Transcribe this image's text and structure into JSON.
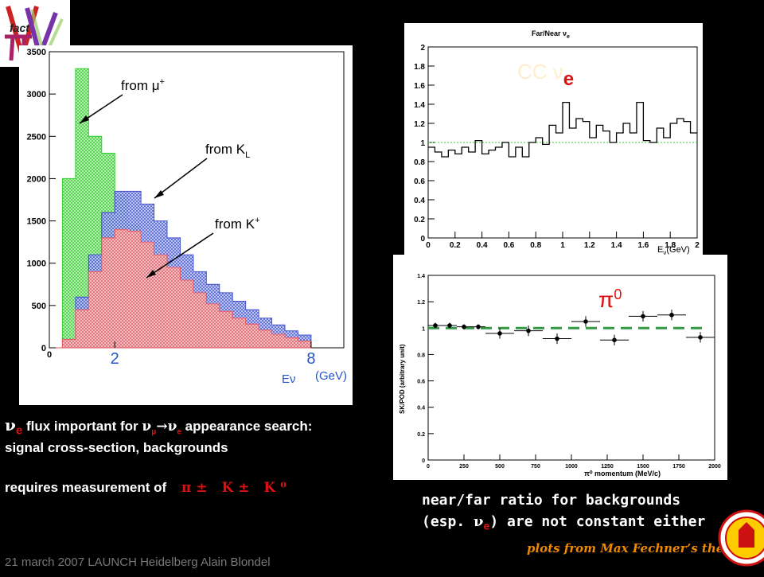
{
  "logo": {
    "text": "fact"
  },
  "left_chart": {
    "annotations": {
      "mu": "from μ",
      "mu_sup": "+",
      "kl": "from K",
      "kl_sub": "L",
      "kp": "from K",
      "kp_sup": "+"
    },
    "yticks": [
      "0",
      "500",
      "1000",
      "1500",
      "2000",
      "2500",
      "3000",
      "3500"
    ],
    "xticks": [
      "0",
      "2",
      "8"
    ],
    "xunit_a": "Eν",
    "xunit_b": "(GeV)",
    "colors": {
      "mu": "#33cc33",
      "kl": "#3344cc",
      "kp": "#ee5555"
    },
    "chart_data": {
      "type": "area",
      "series": [
        {
          "name": "from μ+",
          "values": [
            0,
            2000,
            3300,
            2500,
            2300,
            1800,
            1450,
            1200,
            1000,
            900,
            800,
            650,
            500,
            400,
            300,
            250,
            200,
            160,
            120,
            90
          ]
        },
        {
          "name": "from KL",
          "values": [
            0,
            100,
            600,
            1100,
            1600,
            1850,
            1850,
            1700,
            1500,
            1300,
            1100,
            900,
            750,
            650,
            550,
            450,
            350,
            270,
            200,
            150
          ]
        },
        {
          "name": "from K+",
          "values": [
            0,
            100,
            450,
            900,
            1300,
            1400,
            1380,
            1250,
            1100,
            950,
            800,
            650,
            520,
            430,
            350,
            280,
            210,
            160,
            120,
            80
          ]
        }
      ],
      "x": [
        0,
        0.4,
        0.8,
        1.2,
        1.6,
        2.0,
        2.4,
        2.8,
        3.2,
        3.6,
        4.0,
        4.4,
        4.8,
        5.2,
        5.6,
        6.0,
        6.4,
        6.8,
        7.2,
        7.6
      ],
      "ylim": [
        0,
        3500
      ]
    }
  },
  "far_near_chart": {
    "title": "Far/Near ν",
    "title_sub": "e",
    "overlay_a": "CC ν",
    "overlay_b": "e",
    "xlabel": "E",
    "xlabel_sub": "ν",
    "xlabel_unit": "(GeV)",
    "yticks": [
      "0",
      "0.2",
      "0.4",
      "0.6",
      "0.8",
      "1",
      "1.2",
      "1.4",
      "1.6",
      "1.8",
      "2"
    ],
    "xticks": [
      "0",
      "0.2",
      "0.4",
      "0.6",
      "0.8",
      "1",
      "1.2",
      "1.4",
      "1.6",
      "1.8",
      "2"
    ],
    "chart_data": {
      "type": "line",
      "x": [
        0.025,
        0.075,
        0.125,
        0.175,
        0.225,
        0.275,
        0.325,
        0.375,
        0.425,
        0.475,
        0.525,
        0.575,
        0.625,
        0.675,
        0.725,
        0.775,
        0.825,
        0.875,
        0.925,
        0.975,
        1.025,
        1.075,
        1.125,
        1.175,
        1.225,
        1.275,
        1.325,
        1.375,
        1.425,
        1.475,
        1.525,
        1.575,
        1.625,
        1.675,
        1.725,
        1.775,
        1.825,
        1.875,
        1.925,
        1.975
      ],
      "values": [
        0.95,
        0.9,
        0.85,
        0.92,
        0.88,
        0.95,
        0.9,
        1.02,
        0.88,
        0.92,
        0.95,
        1.0,
        0.85,
        0.95,
        0.85,
        1.0,
        1.05,
        0.98,
        1.18,
        1.1,
        1.42,
        1.15,
        1.25,
        1.22,
        1.05,
        1.18,
        1.12,
        1.0,
        1.1,
        1.2,
        1.1,
        1.42,
        1.02,
        1.0,
        1.15,
        1.05,
        1.2,
        1.25,
        1.22,
        1.1
      ],
      "xlim": [
        0,
        2
      ],
      "ylim": [
        0,
        2
      ]
    }
  },
  "pi0_chart": {
    "label": "π",
    "label_sup": "0",
    "ylabel": "SK/POD (arbitrary unit)",
    "xlabel": "π⁰ momentum (MeV/c)",
    "yticks": [
      "0",
      "0.2",
      "0.4",
      "0.6",
      "0.8",
      "1",
      "1.2",
      "1.4"
    ],
    "xticks": [
      "0",
      "250",
      "500",
      "750",
      "1000",
      "1250",
      "1500",
      "1750",
      "2000"
    ],
    "chart_data": {
      "type": "scatter",
      "x": [
        50,
        150,
        250,
        350,
        500,
        700,
        900,
        1100,
        1300,
        1500,
        1700,
        1900
      ],
      "values": [
        1.02,
        1.02,
        1.01,
        1.01,
        0.96,
        0.98,
        0.92,
        1.05,
        0.91,
        1.09,
        1.1,
        0.93
      ],
      "xlim": [
        0,
        2000
      ],
      "ylim": [
        0,
        1.4
      ]
    }
  },
  "text": {
    "line1_nu": "ν",
    "line1_e": "e",
    "line1_mid": " flux important for  ",
    "line1_numu": "ν",
    "line1_mu": "μ",
    "line1_arrow": "→",
    "line1_nue": "ν",
    "line1_e2": "e",
    "line1_end": "  appearance search:",
    "line2": "signal cross-section, backgrounds",
    "line3": "requires measurement of",
    "particles": "π± K± K⁰",
    "near_far1": "near/far ratio for backgrounds",
    "near_far2a": "(esp. ",
    "near_far2_nu": "ν",
    "near_far2_e": "e",
    "near_far2b": ") are not constant either",
    "credit": "plots from Max Fechner’s thesis",
    "footer": "21 march 2007 LAUNCH Heidelberg  Alain Blondel"
  }
}
